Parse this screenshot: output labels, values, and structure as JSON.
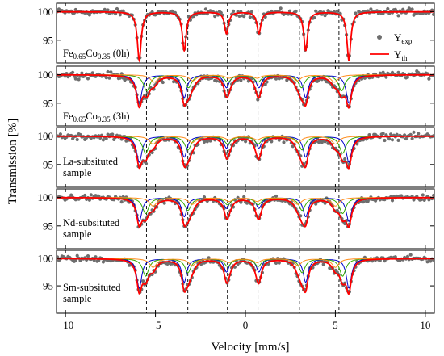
{
  "chart_data": {
    "type": "line",
    "xlabel": "Velocity [mm/s]",
    "ylabel": "Transmission [%]",
    "xlim": [
      -10.5,
      10.5
    ],
    "x_ticks": [
      "-10",
      "-5",
      "0",
      "5",
      "10"
    ],
    "y_ticks": [
      "100",
      "95"
    ],
    "legend": {
      "placement": "top-right",
      "entries": [
        {
          "base": "Y",
          "sub": "exp",
          "style": "grey-dots"
        },
        {
          "base": "Y",
          "sub": "th",
          "style": "red-line"
        }
      ]
    },
    "colors": {
      "experimental": "#6e6e6e",
      "fit_total": "#ff0000",
      "sextet_1": "#0000cc",
      "sextet_2": "#33aa00",
      "sextet_3": "#ff8c1a"
    },
    "dashed_reference_lines_mm_s": [
      -5.5,
      -3.2,
      -1.0,
      0.7,
      3.0,
      5.2
    ],
    "panels": [
      {
        "label_lines": [
          "Fe",
          "0.65",
          "Co",
          "0.35",
          " (0h)"
        ],
        "label_type": "formula",
        "ylim": [
          91,
          101.5
        ],
        "sextets": 1
      },
      {
        "label_lines": [
          "Fe",
          "0.65",
          "Co",
          "0.35",
          " (3h)"
        ],
        "label_type": "formula",
        "ylim": [
          91,
          101.5
        ],
        "sextets": 3
      },
      {
        "label_lines": [
          "La-subsituted",
          "sample"
        ],
        "label_type": "text",
        "ylim": [
          91,
          101.5
        ],
        "sextets": 3
      },
      {
        "label_lines": [
          "Nd-subsituted",
          "sample"
        ],
        "label_type": "text",
        "ylim": [
          91,
          101.5
        ],
        "sextets": 3
      },
      {
        "label_lines": [
          "Sm-subsituted",
          "sample"
        ],
        "label_type": "text",
        "ylim": [
          90,
          101.5
        ],
        "sextets": 3
      }
    ]
  }
}
